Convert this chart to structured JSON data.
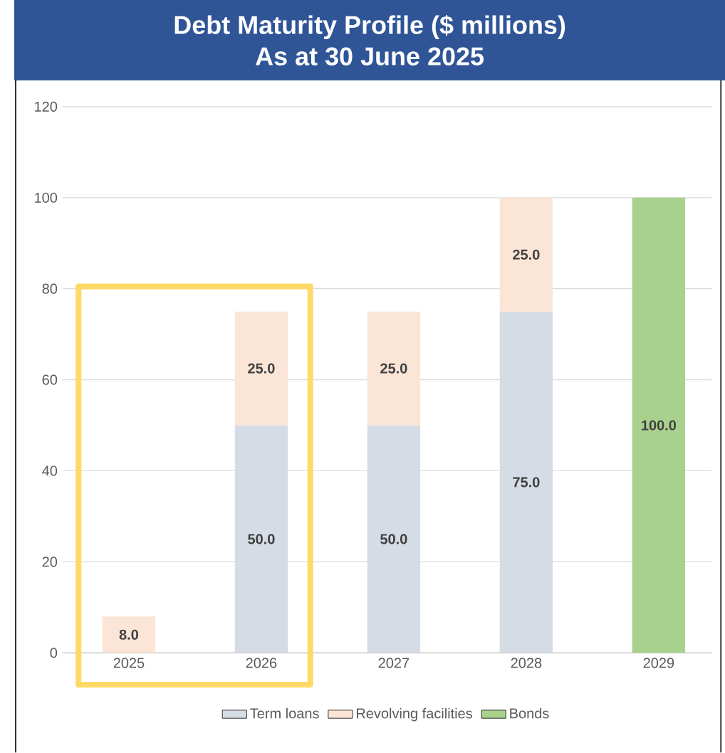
{
  "chart_data": {
    "type": "bar",
    "title": "Debt Maturity Profile ($ millions)",
    "subtitle": "As at 30 June 2025",
    "categories": [
      "2025",
      "2026",
      "2027",
      "2028",
      "2029"
    ],
    "series": [
      {
        "name": "Term loans",
        "color": "#d6dce5",
        "values": [
          null,
          50,
          50,
          75,
          null
        ],
        "value_labels": [
          null,
          "50.0",
          "50.0",
          "75.0",
          null
        ]
      },
      {
        "name": "Revolving facilities",
        "color": "#fbe5d6",
        "values": [
          8,
          25,
          25,
          25,
          null
        ],
        "value_labels": [
          "8.0",
          "25.0",
          "25.0",
          "25.0",
          null
        ]
      },
      {
        "name": "Bonds",
        "color": "#a9d18e",
        "values": [
          null,
          null,
          null,
          null,
          100
        ],
        "value_labels": [
          null,
          null,
          null,
          null,
          "100.0"
        ]
      }
    ],
    "stacked": true,
    "data_labels": true,
    "ylim": [
      0,
      120
    ],
    "yticks": [
      0,
      20,
      40,
      60,
      80,
      100,
      120
    ],
    "grid": "y",
    "legend": "bottom"
  }
}
